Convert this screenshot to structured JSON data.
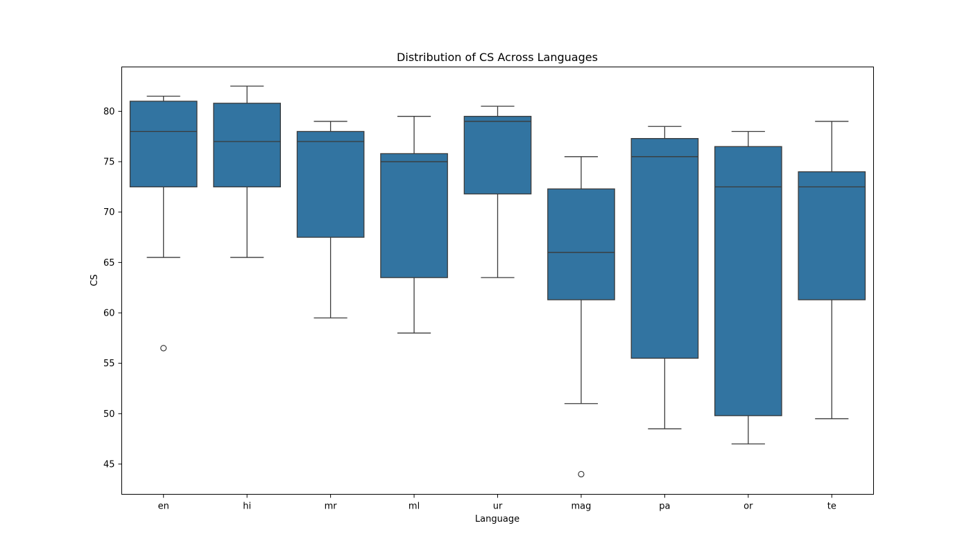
{
  "chart_data": {
    "type": "box",
    "title": "Distribution of CS Across Languages",
    "xlabel": "Language",
    "ylabel": "CS",
    "ylim": [
      42.0,
      84.4
    ],
    "yticks": [
      45,
      50,
      55,
      60,
      65,
      70,
      75,
      80
    ],
    "grid": false,
    "legend": "none",
    "box_color": "#3274a1",
    "line_color": "#3a3a3a",
    "categories": [
      "en",
      "hi",
      "mr",
      "ml",
      "ur",
      "mag",
      "pa",
      "or",
      "te"
    ],
    "boxes": [
      {
        "category": "en",
        "whisker_low": 65.5,
        "q1": 72.5,
        "median": 78.0,
        "q3": 81.0,
        "whisker_high": 81.5,
        "outliers": [
          56.5
        ]
      },
      {
        "category": "hi",
        "whisker_low": 65.5,
        "q1": 72.5,
        "median": 77.0,
        "q3": 80.8,
        "whisker_high": 82.5,
        "outliers": []
      },
      {
        "category": "mr",
        "whisker_low": 59.5,
        "q1": 67.5,
        "median": 77.0,
        "q3": 78.0,
        "whisker_high": 79.0,
        "outliers": []
      },
      {
        "category": "ml",
        "whisker_low": 58.0,
        "q1": 63.5,
        "median": 75.0,
        "q3": 75.8,
        "whisker_high": 79.5,
        "outliers": []
      },
      {
        "category": "ur",
        "whisker_low": 63.5,
        "q1": 71.8,
        "median": 79.0,
        "q3": 79.5,
        "whisker_high": 80.5,
        "outliers": []
      },
      {
        "category": "mag",
        "whisker_low": 51.0,
        "q1": 61.3,
        "median": 66.0,
        "q3": 72.3,
        "whisker_high": 75.5,
        "outliers": [
          44.0
        ]
      },
      {
        "category": "pa",
        "whisker_low": 48.5,
        "q1": 55.5,
        "median": 75.5,
        "q3": 77.3,
        "whisker_high": 78.5,
        "outliers": []
      },
      {
        "category": "or",
        "whisker_low": 47.0,
        "q1": 49.8,
        "median": 72.5,
        "q3": 76.5,
        "whisker_high": 78.0,
        "outliers": []
      },
      {
        "category": "te",
        "whisker_low": 49.5,
        "q1": 61.3,
        "median": 72.5,
        "q3": 74.0,
        "whisker_high": 79.0,
        "outliers": []
      }
    ]
  }
}
